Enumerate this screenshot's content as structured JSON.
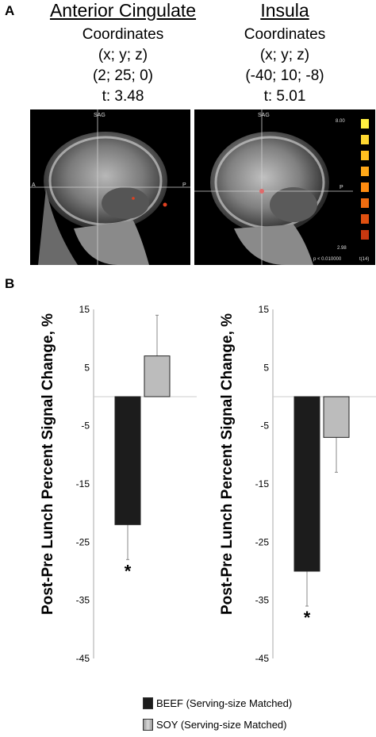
{
  "panel_a": {
    "letter": "A",
    "regions": [
      {
        "title": "Anterior Cingulate",
        "coord_label": "Coordinates",
        "axes_label": "(x; y; z)",
        "coords": "(2; 25; 0)",
        "t_value": "t: 3.48",
        "image": {
          "view": "SAG",
          "left_marker": "A",
          "right_marker": "P"
        }
      },
      {
        "title": "Insula",
        "coord_label": "Coordinates",
        "axes_label": "(x; y; z)",
        "coords": "(-40; 10; -8)",
        "t_value": "t: 5.01",
        "image": {
          "view": "SAG",
          "right_marker": "P",
          "colorbar_max": "8.00",
          "colorbar_min": "2.98",
          "p_text": "p < 0.010000",
          "t_df": "t(14)"
        }
      }
    ]
  },
  "panel_b": {
    "letter": "B"
  },
  "colors": {
    "beef": "#1c1c1c",
    "soy": "#bcbcbc"
  },
  "chart_data": [
    {
      "type": "bar",
      "title": "",
      "xlabel": "",
      "ylabel": "Post-Pre Lunch Percent Signal Change, %",
      "ylim": [
        -45,
        15
      ],
      "yticks": [
        15,
        5,
        -5,
        -15,
        -25,
        -35,
        -45
      ],
      "categories": [
        "BEEF (Serving-size Matched)",
        "SOY (Serving-size Matched)"
      ],
      "values": [
        -22,
        7
      ],
      "errors": [
        6,
        7
      ],
      "annotations": [
        "*",
        ""
      ]
    },
    {
      "type": "bar",
      "title": "",
      "xlabel": "",
      "ylabel": "Post-Pre Lunch Percent Signal Change, %",
      "ylim": [
        -45,
        15
      ],
      "yticks": [
        15,
        5,
        -5,
        -15,
        -25,
        -35,
        -45
      ],
      "categories": [
        "BEEF (Serving-size Matched)",
        "SOY (Serving-size Matched)"
      ],
      "values": [
        -30,
        -7
      ],
      "errors": [
        6,
        6
      ],
      "annotations": [
        "*",
        ""
      ]
    }
  ],
  "legend": {
    "items": [
      "BEEF (Serving-size Matched)",
      "SOY (Serving-size Matched)"
    ]
  }
}
